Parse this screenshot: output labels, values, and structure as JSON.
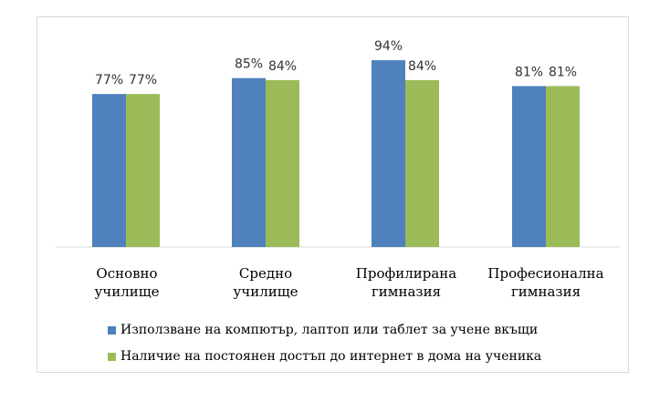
{
  "chart_data": {
    "type": "bar",
    "categories": [
      "Основно\nучилище",
      "Средно\nучилище",
      "Профилирана\nгимназия",
      "Професионална\nгимназия"
    ],
    "series": [
      {
        "name": "Използване на компютър, лаптоп или таблет за учене вкъщи",
        "values": [
          77,
          85,
          94,
          81
        ],
        "labels": [
          "77%",
          "85%",
          "94%",
          "81%"
        ],
        "color": "#4f81bd"
      },
      {
        "name": "Наличие на постоянен достъп до интернет в дома на ученика",
        "values": [
          77,
          84,
          84,
          81
        ],
        "labels": [
          "77%",
          "84%",
          "84%",
          "81%"
        ],
        "color": "#9bbb59"
      }
    ],
    "ylim": [
      0,
      100
    ],
    "grid": false,
    "legend_position": "bottom"
  }
}
